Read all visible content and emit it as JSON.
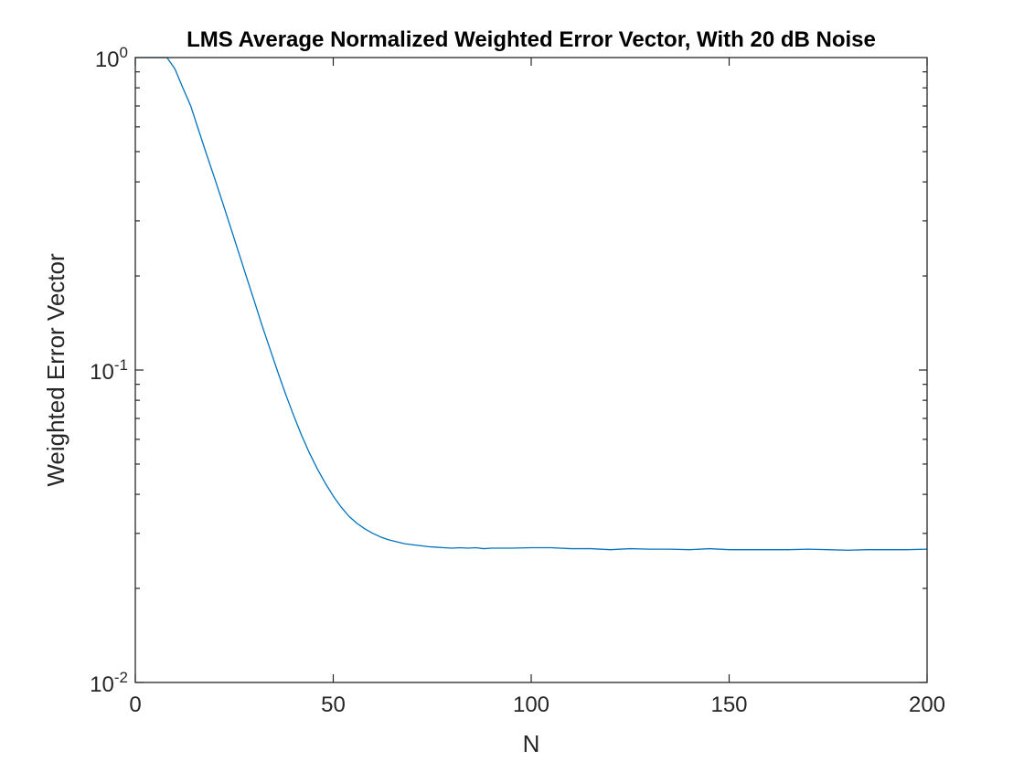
{
  "chart_data": {
    "type": "line",
    "title": "LMS Average Normalized Weighted Error Vector, With 20 dB Noise",
    "xlabel": "N",
    "ylabel": "Weighted Error Vector",
    "xlim": [
      0,
      200
    ],
    "ylim": [
      0.01,
      1
    ],
    "yscale": "log",
    "grid": false,
    "legend": "none",
    "x_ticks": [
      {
        "value": 0,
        "label": "0"
      },
      {
        "value": 50,
        "label": "50"
      },
      {
        "value": 100,
        "label": "100"
      },
      {
        "value": 150,
        "label": "150"
      },
      {
        "value": 200,
        "label": "200"
      }
    ],
    "y_ticks": [
      {
        "value": 1,
        "base": "10",
        "exp": "0"
      },
      {
        "value": 0.1,
        "base": "10",
        "exp": "-1"
      },
      {
        "value": 0.01,
        "base": "10",
        "exp": "-2"
      }
    ],
    "series": [
      {
        "color": "#0072bd",
        "x": [
          0,
          2,
          4,
          6,
          8,
          10,
          12,
          14,
          16,
          18,
          20,
          22,
          24,
          26,
          28,
          30,
          32,
          34,
          36,
          38,
          40,
          42,
          44,
          46,
          48,
          50,
          52,
          54,
          56,
          58,
          60,
          62,
          64,
          66,
          68,
          70,
          72,
          74,
          76,
          78,
          80,
          82,
          84,
          86,
          88,
          90,
          95,
          100,
          105,
          110,
          115,
          120,
          125,
          130,
          135,
          140,
          145,
          150,
          155,
          160,
          165,
          170,
          175,
          180,
          185,
          190,
          195,
          200
        ],
        "y": [
          1,
          1,
          1,
          1,
          1,
          0.92,
          0.8,
          0.7,
          0.585,
          0.49,
          0.412,
          0.345,
          0.288,
          0.24,
          0.2,
          0.167,
          0.139,
          0.117,
          0.0985,
          0.0835,
          0.0715,
          0.0618,
          0.0542,
          0.0482,
          0.0434,
          0.0395,
          0.0364,
          0.034,
          0.0323,
          0.031,
          0.03,
          0.0292,
          0.0286,
          0.0282,
          0.0278,
          0.0276,
          0.0274,
          0.0272,
          0.0271,
          0.027,
          0.0269,
          0.027,
          0.0269,
          0.027,
          0.0268,
          0.0269,
          0.0269,
          0.027,
          0.027,
          0.0268,
          0.0268,
          0.0266,
          0.0268,
          0.0267,
          0.0267,
          0.0266,
          0.0268,
          0.0266,
          0.0266,
          0.0266,
          0.0266,
          0.0267,
          0.0266,
          0.0265,
          0.0266,
          0.0266,
          0.0266,
          0.0267
        ]
      }
    ]
  }
}
